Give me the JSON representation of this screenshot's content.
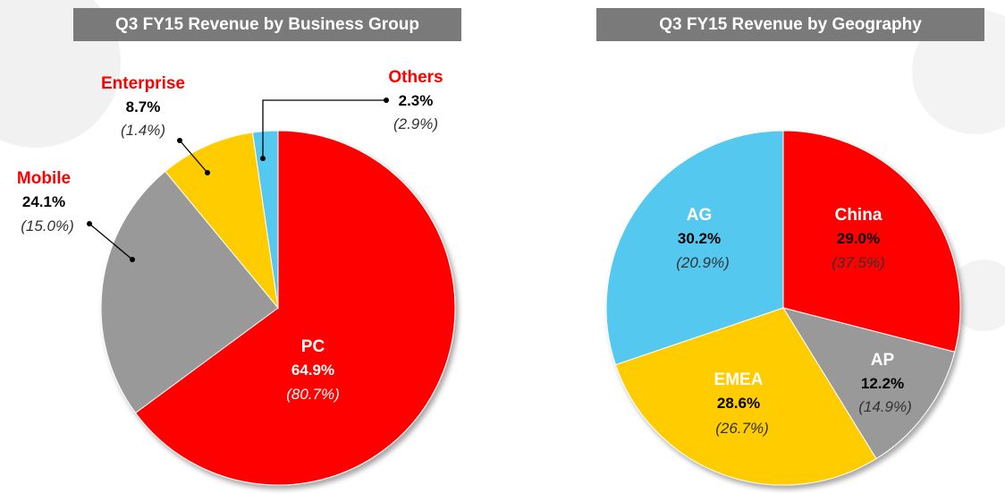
{
  "chart_data": [
    {
      "type": "pie",
      "title": "Q3 FY15 Revenue by Business Group",
      "slices": [
        {
          "label": "PC",
          "value": 64.9,
          "sub": "(80.7%)",
          "color": "#ff0000",
          "label_color": "#ffffff",
          "value_color": "#ffffff"
        },
        {
          "label": "Mobile",
          "value": 24.1,
          "sub": "(15.0%)",
          "color": "#999999",
          "label_color": "#ff0000",
          "value_color": "#000000"
        },
        {
          "label": "Enterprise",
          "value": 8.7,
          "sub": "(1.4%)",
          "color": "#ffcc00",
          "label_color": "#ff0000",
          "value_color": "#000000"
        },
        {
          "label": "Others",
          "value": 2.3,
          "sub": "(2.9%)",
          "color": "#55c8f0",
          "label_color": "#ff0000",
          "value_color": "#000000"
        }
      ],
      "values_display": [
        "64.9%",
        "24.1%",
        "8.7%",
        "2.3%"
      ]
    },
    {
      "type": "pie",
      "title": "Q3 FY15 Revenue by Geography",
      "slices": [
        {
          "label": "China",
          "value": 29.0,
          "sub": "(37.5%)",
          "color": "#ff0000",
          "label_color": "#ffffff",
          "value_color": "#000000"
        },
        {
          "label": "AP",
          "value": 12.2,
          "sub": "(14.9%)",
          "color": "#999999",
          "label_color": "#ffffff",
          "value_color": "#000000"
        },
        {
          "label": "EMEA",
          "value": 28.6,
          "sub": "(26.7%)",
          "color": "#ffcc00",
          "label_color": "#ffffff",
          "value_color": "#000000"
        },
        {
          "label": "AG",
          "value": 30.2,
          "sub": "(20.9%)",
          "color": "#55c8f0",
          "label_color": "#ffffff",
          "value_color": "#000000"
        }
      ],
      "values_display": [
        "29.0%",
        "12.2%",
        "28.6%",
        "30.2%"
      ]
    }
  ]
}
